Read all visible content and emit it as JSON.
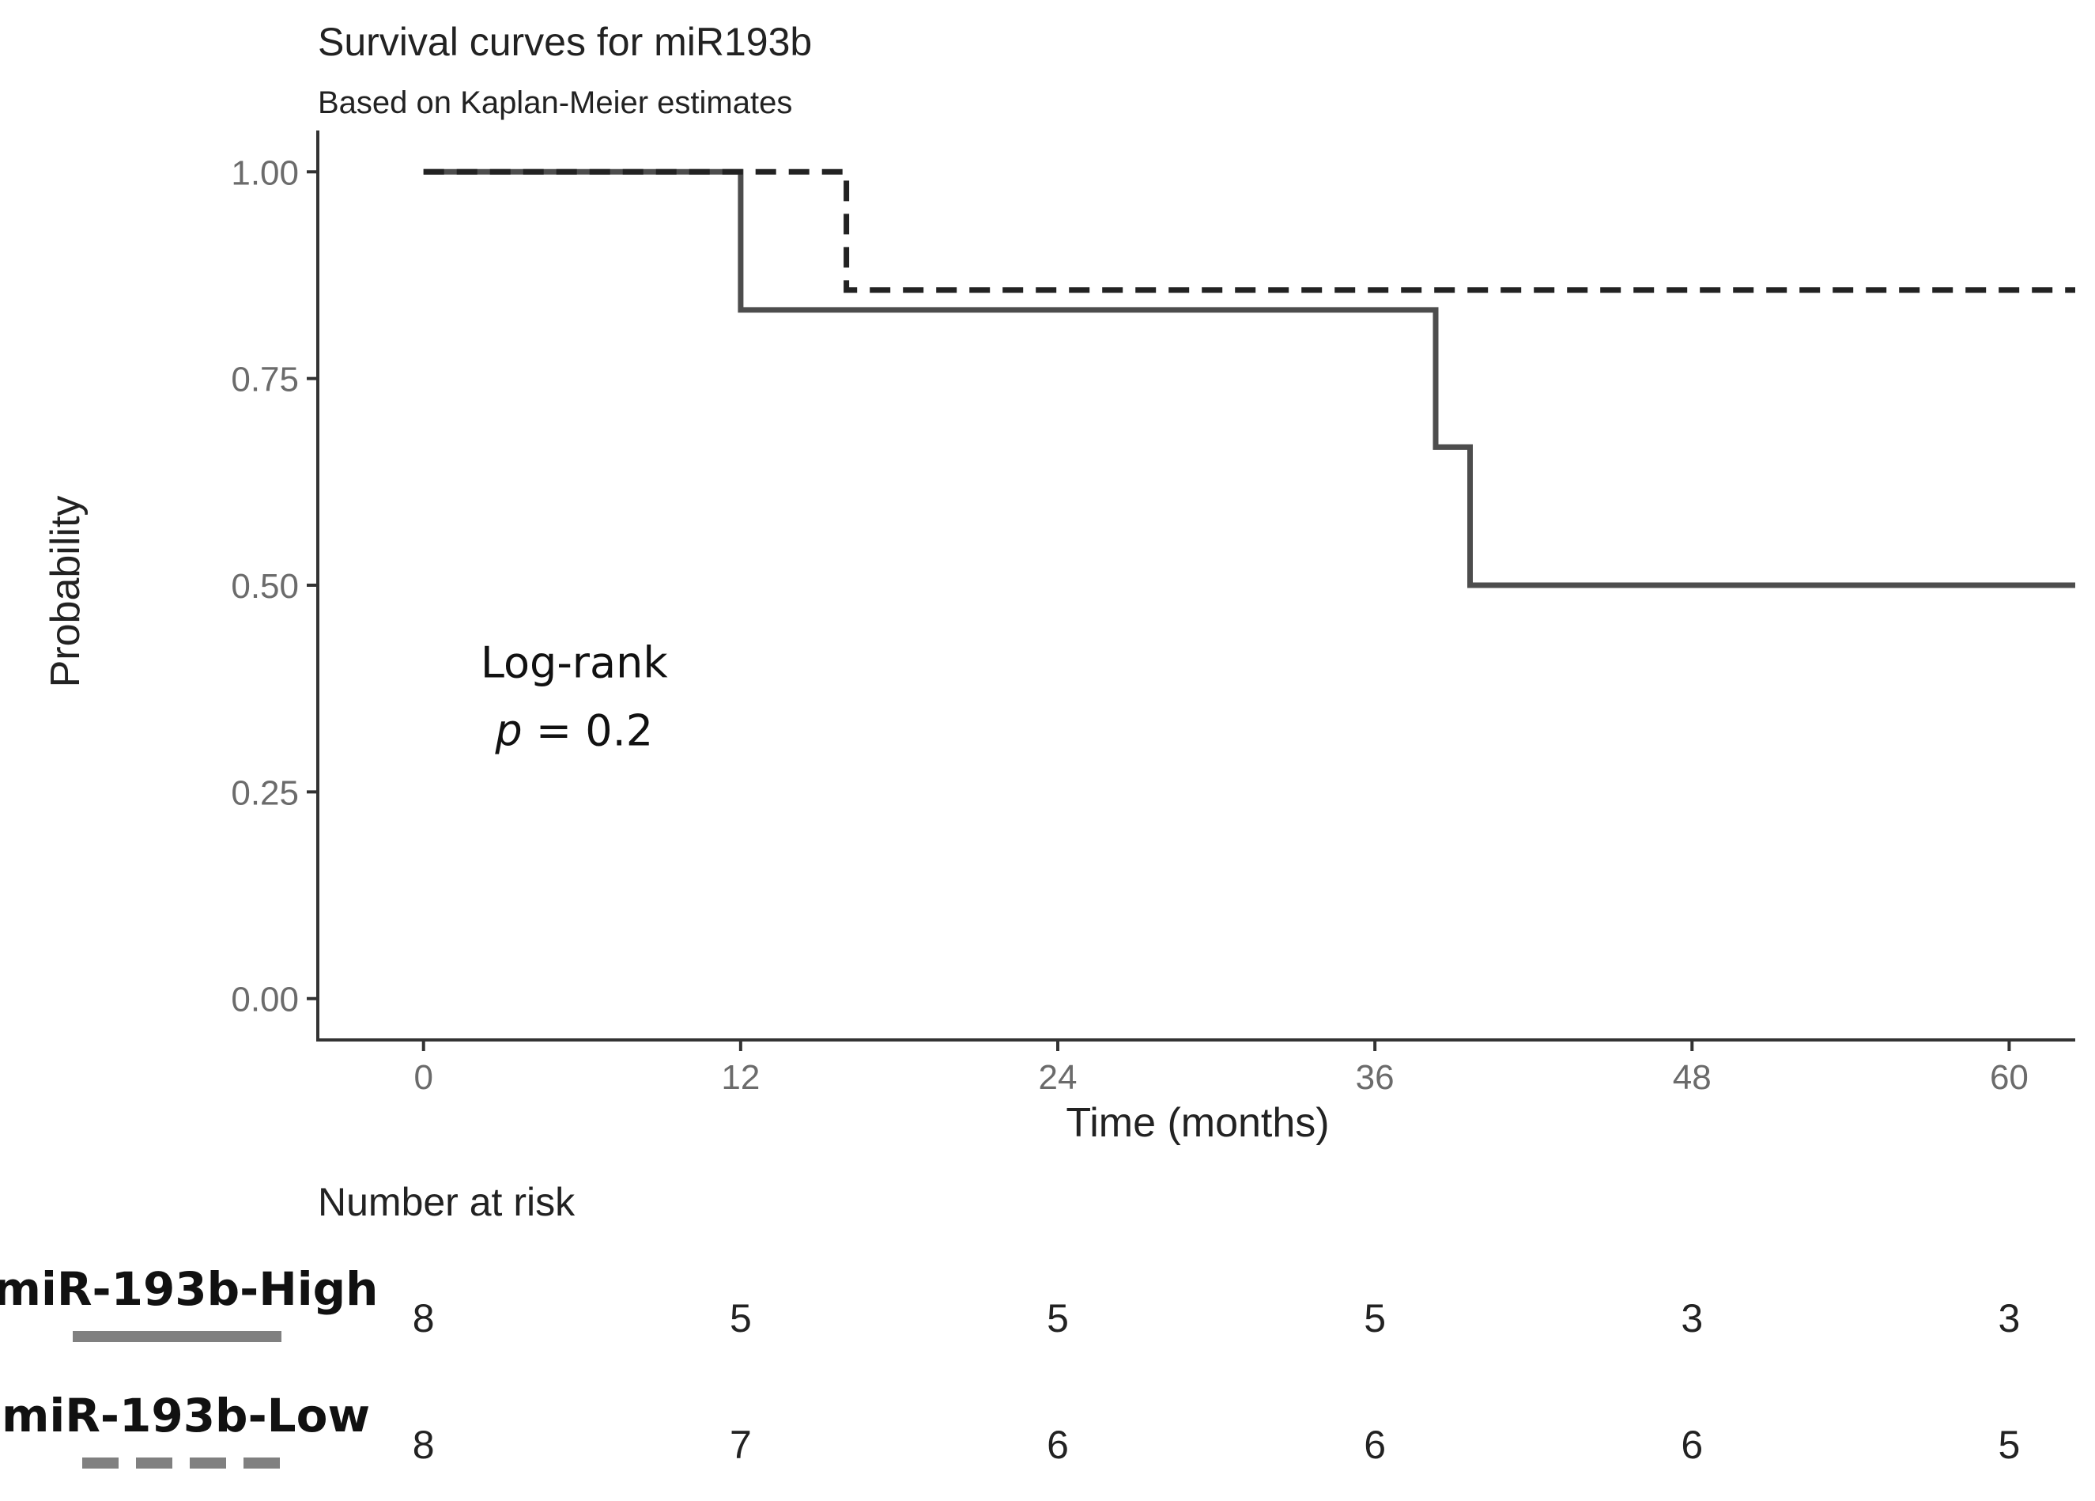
{
  "chart_data": {
    "type": "line",
    "subtype": "kaplan-meier-step",
    "title": "Survival curves for miR193b",
    "subtitle": "Based on Kaplan-Meier estimates",
    "xlabel": "Time (months)",
    "ylabel": "Probability",
    "xlim": [
      -4,
      62.5
    ],
    "ylim": [
      -0.05,
      1.05
    ],
    "x_ticks": [
      0,
      12,
      24,
      36,
      48,
      60
    ],
    "x_tick_labels": [
      "0",
      "12",
      "24",
      "36",
      "48",
      "60"
    ],
    "y_ticks": [
      0,
      0.25,
      0.5,
      0.75,
      1
    ],
    "y_tick_labels": [
      "0.00",
      "0.25",
      "0.50",
      "0.75",
      "1.00"
    ],
    "grid": false,
    "series": [
      {
        "name": "miR-193b-High",
        "line_style": "solid",
        "color": "#4d4d4d",
        "points": [
          [
            0,
            1.0
          ],
          [
            12,
            1.0
          ],
          [
            12,
            0.833
          ],
          [
            38.3,
            0.833
          ],
          [
            38.3,
            0.667
          ],
          [
            39.6,
            0.667
          ],
          [
            39.6,
            0.5
          ],
          [
            62.5,
            0.5
          ]
        ]
      },
      {
        "name": "miR-193b-Low",
        "line_style": "dashed",
        "color": "#222222",
        "points": [
          [
            0,
            1.0
          ],
          [
            16,
            1.0
          ],
          [
            16,
            0.857
          ],
          [
            62.5,
            0.857
          ]
        ]
      }
    ],
    "annotation": {
      "line1": "Log-rank",
      "p_symbol": "p",
      "p_rest": " = 0.2",
      "x": 5.7,
      "y": 0.36
    },
    "risk_table": {
      "title": "Number at risk",
      "times": [
        0,
        12,
        24,
        36,
        48,
        60
      ],
      "rows": [
        {
          "label": "miR-193b-High",
          "line_style": "solid",
          "values": [
            "8",
            "5",
            "5",
            "5",
            "3",
            "3"
          ]
        },
        {
          "label": "miR-193b-Low",
          "line_style": "dashed",
          "values": [
            "8",
            "7",
            "6",
            "6",
            "6",
            "5"
          ]
        }
      ]
    },
    "colors": {
      "axis": "#333333",
      "tick_label": "#6b6b6b",
      "text": "#222222",
      "legend_swatch": "#808080"
    }
  }
}
